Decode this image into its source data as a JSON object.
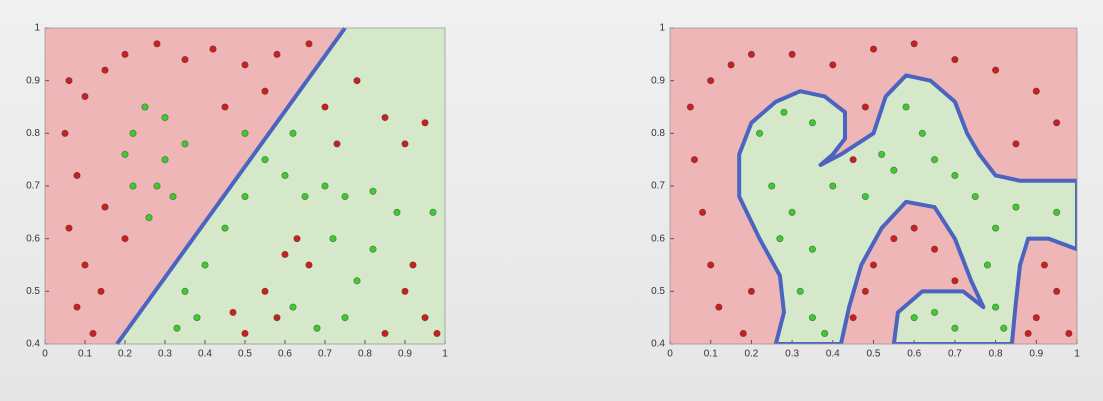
{
  "chart_data": [
    {
      "type": "scatter",
      "xlim": [
        0,
        1
      ],
      "ylim": [
        0.4,
        1
      ],
      "xticks": [
        0,
        0.1,
        0.2,
        0.3,
        0.4,
        0.5,
        0.6,
        0.7,
        0.8,
        0.9,
        1
      ],
      "yticks": [
        0.4,
        0.5,
        0.6,
        0.7,
        0.8,
        0.9,
        1
      ],
      "background_color": "#eeb6b6",
      "region_color": "#d6e8ca",
      "boundary": {
        "closed": false,
        "color": "#4a64c0",
        "x": [
          0.18,
          0.75
        ],
        "y": [
          0.4,
          1.0
        ]
      },
      "series": [
        {
          "color": "#cc2020",
          "x": [
            0.06,
            0.1,
            0.15,
            0.2,
            0.28,
            0.35,
            0.42,
            0.5,
            0.58,
            0.66,
            0.05,
            0.08,
            0.06,
            0.1,
            0.08,
            0.14,
            0.12,
            0.2,
            0.15,
            0.45,
            0.55,
            0.7,
            0.73,
            0.78,
            0.85,
            0.9,
            0.95,
            0.5,
            0.55,
            0.6,
            0.63,
            0.66,
            0.47,
            0.58,
            0.9,
            0.95,
            0.92,
            0.98,
            0.85
          ],
          "y": [
            0.9,
            0.87,
            0.92,
            0.95,
            0.97,
            0.94,
            0.96,
            0.93,
            0.95,
            0.97,
            0.8,
            0.72,
            0.62,
            0.55,
            0.47,
            0.5,
            0.42,
            0.6,
            0.66,
            0.85,
            0.88,
            0.85,
            0.78,
            0.9,
            0.83,
            0.78,
            0.82,
            0.42,
            0.5,
            0.57,
            0.6,
            0.55,
            0.46,
            0.45,
            0.5,
            0.45,
            0.55,
            0.42,
            0.42
          ]
        },
        {
          "color": "#3ccc30",
          "x": [
            0.22,
            0.25,
            0.3,
            0.35,
            0.28,
            0.22,
            0.3,
            0.32,
            0.26,
            0.2,
            0.5,
            0.55,
            0.6,
            0.62,
            0.65,
            0.7,
            0.75,
            0.82,
            0.88,
            0.97,
            0.45,
            0.4,
            0.35,
            0.38,
            0.33,
            0.5,
            0.72,
            0.78,
            0.75,
            0.62,
            0.82,
            0.68
          ],
          "y": [
            0.8,
            0.85,
            0.83,
            0.78,
            0.7,
            0.7,
            0.75,
            0.68,
            0.64,
            0.76,
            0.8,
            0.75,
            0.72,
            0.8,
            0.68,
            0.7,
            0.68,
            0.69,
            0.65,
            0.65,
            0.62,
            0.55,
            0.5,
            0.45,
            0.43,
            0.68,
            0.6,
            0.52,
            0.45,
            0.47,
            0.58,
            0.43
          ]
        }
      ]
    },
    {
      "type": "scatter",
      "xlim": [
        0,
        1
      ],
      "ylim": [
        0.4,
        1
      ],
      "xticks": [
        0,
        0.1,
        0.2,
        0.3,
        0.4,
        0.5,
        0.6,
        0.7,
        0.8,
        0.9,
        1
      ],
      "yticks": [
        0.4,
        0.5,
        0.6,
        0.7,
        0.8,
        0.9,
        1
      ],
      "background_color": "#eeb6b6",
      "region_color": "#d6e8ca",
      "boundary": {
        "closed": true,
        "color": "#4a64c0",
        "x": [
          0.26,
          0.28,
          0.27,
          0.22,
          0.17,
          0.17,
          0.2,
          0.26,
          0.32,
          0.38,
          0.43,
          0.43,
          0.4,
          0.37,
          0.42,
          0.5,
          0.53,
          0.58,
          0.64,
          0.7,
          0.73,
          0.76,
          0.8,
          0.86,
          1.0,
          1.0,
          0.93,
          0.88,
          0.86,
          0.85,
          0.84,
          0.55,
          0.56,
          0.62,
          0.72,
          0.77,
          0.74,
          0.7,
          0.65,
          0.58,
          0.52,
          0.47,
          0.44,
          0.42
        ],
        "y": [
          0.4,
          0.46,
          0.53,
          0.6,
          0.68,
          0.76,
          0.82,
          0.86,
          0.88,
          0.87,
          0.84,
          0.79,
          0.76,
          0.74,
          0.76,
          0.8,
          0.87,
          0.91,
          0.9,
          0.86,
          0.8,
          0.76,
          0.72,
          0.71,
          0.71,
          0.58,
          0.6,
          0.6,
          0.55,
          0.48,
          0.4,
          0.4,
          0.46,
          0.5,
          0.5,
          0.47,
          0.52,
          0.6,
          0.66,
          0.67,
          0.62,
          0.55,
          0.47,
          0.4
        ]
      },
      "series": [
        {
          "color": "#cc2020",
          "x": [
            0.1,
            0.15,
            0.2,
            0.3,
            0.4,
            0.5,
            0.6,
            0.7,
            0.8,
            0.9,
            0.95,
            0.85,
            0.05,
            0.06,
            0.08,
            0.1,
            0.12,
            0.18,
            0.2,
            0.45,
            0.48,
            0.45,
            0.5,
            0.55,
            0.6,
            0.65,
            0.7,
            0.48,
            0.9,
            0.95,
            0.98,
            0.92,
            0.88
          ],
          "y": [
            0.9,
            0.93,
            0.95,
            0.95,
            0.93,
            0.96,
            0.97,
            0.94,
            0.92,
            0.88,
            0.82,
            0.78,
            0.85,
            0.75,
            0.65,
            0.55,
            0.47,
            0.42,
            0.5,
            0.75,
            0.85,
            0.45,
            0.55,
            0.6,
            0.62,
            0.58,
            0.52,
            0.5,
            0.45,
            0.5,
            0.42,
            0.55,
            0.42
          ]
        },
        {
          "color": "#3ccc30",
          "x": [
            0.22,
            0.28,
            0.35,
            0.25,
            0.3,
            0.35,
            0.32,
            0.35,
            0.38,
            0.4,
            0.48,
            0.55,
            0.58,
            0.62,
            0.65,
            0.7,
            0.75,
            0.85,
            0.95,
            0.8,
            0.78,
            0.8,
            0.82,
            0.6,
            0.65,
            0.7,
            0.27,
            0.52
          ],
          "y": [
            0.8,
            0.84,
            0.82,
            0.7,
            0.65,
            0.58,
            0.5,
            0.45,
            0.42,
            0.7,
            0.68,
            0.73,
            0.85,
            0.8,
            0.75,
            0.72,
            0.68,
            0.66,
            0.65,
            0.62,
            0.55,
            0.47,
            0.43,
            0.45,
            0.46,
            0.43,
            0.6,
            0.76
          ]
        }
      ]
    }
  ]
}
